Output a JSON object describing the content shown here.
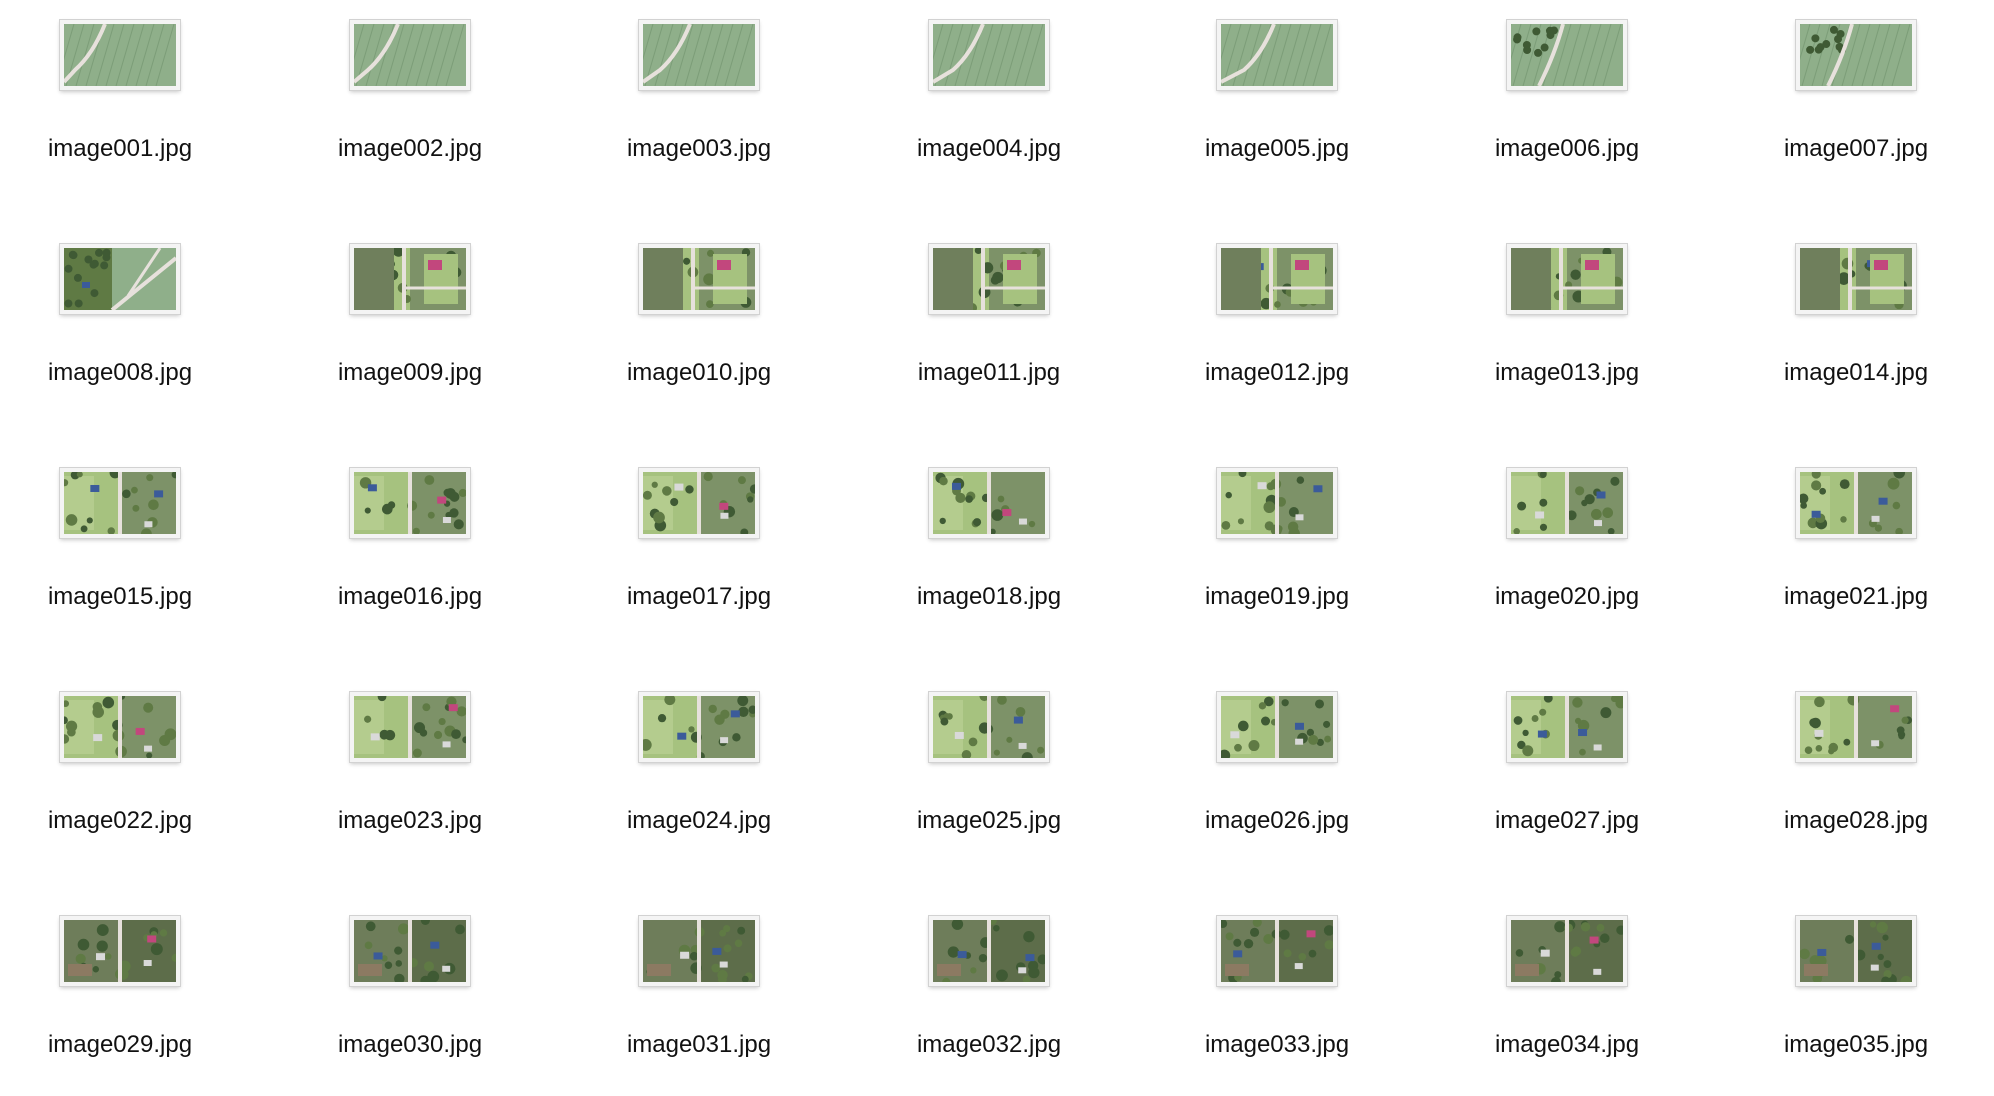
{
  "files": [
    {
      "name": "image001.jpg",
      "scene": "field-road"
    },
    {
      "name": "image002.jpg",
      "scene": "field-road"
    },
    {
      "name": "image003.jpg",
      "scene": "field-road"
    },
    {
      "name": "image004.jpg",
      "scene": "field-road"
    },
    {
      "name": "image005.jpg",
      "scene": "field-road"
    },
    {
      "name": "image006.jpg",
      "scene": "field-trees"
    },
    {
      "name": "image007.jpg",
      "scene": "field-trees"
    },
    {
      "name": "image008.jpg",
      "scene": "field-village"
    },
    {
      "name": "image009.jpg",
      "scene": "village-road"
    },
    {
      "name": "image010.jpg",
      "scene": "village-road"
    },
    {
      "name": "image011.jpg",
      "scene": "village-road"
    },
    {
      "name": "image012.jpg",
      "scene": "village-road"
    },
    {
      "name": "image013.jpg",
      "scene": "village-road"
    },
    {
      "name": "image014.jpg",
      "scene": "village-road"
    },
    {
      "name": "image015.jpg",
      "scene": "village-garden"
    },
    {
      "name": "image016.jpg",
      "scene": "village-garden"
    },
    {
      "name": "image017.jpg",
      "scene": "village-garden"
    },
    {
      "name": "image018.jpg",
      "scene": "village-garden"
    },
    {
      "name": "image019.jpg",
      "scene": "village-garden"
    },
    {
      "name": "image020.jpg",
      "scene": "village-garden"
    },
    {
      "name": "image021.jpg",
      "scene": "village-garden"
    },
    {
      "name": "image022.jpg",
      "scene": "village-garden"
    },
    {
      "name": "image023.jpg",
      "scene": "village-garden"
    },
    {
      "name": "image024.jpg",
      "scene": "village-garden"
    },
    {
      "name": "image025.jpg",
      "scene": "village-garden"
    },
    {
      "name": "image026.jpg",
      "scene": "village-garden"
    },
    {
      "name": "image027.jpg",
      "scene": "village-garden"
    },
    {
      "name": "image028.jpg",
      "scene": "village-garden"
    },
    {
      "name": "image029.jpg",
      "scene": "village-dense"
    },
    {
      "name": "image030.jpg",
      "scene": "village-dense"
    },
    {
      "name": "image031.jpg",
      "scene": "village-dense"
    },
    {
      "name": "image032.jpg",
      "scene": "village-dense"
    },
    {
      "name": "image033.jpg",
      "scene": "village-dense"
    },
    {
      "name": "image034.jpg",
      "scene": "village-dense"
    },
    {
      "name": "image035.jpg",
      "scene": "village-dense"
    }
  ],
  "colors": {
    "field": "#8faf8a",
    "field_dark": "#7c9d78",
    "road": "#e7e1dc",
    "grass": "#a6c27f",
    "tree": "#3f5a34",
    "tree_light": "#5f7a44",
    "roof_blue": "#3b5b9a",
    "roof_pink": "#c2477d",
    "roof_gray": "#d9d9d9",
    "soil": "#8c7a62"
  }
}
